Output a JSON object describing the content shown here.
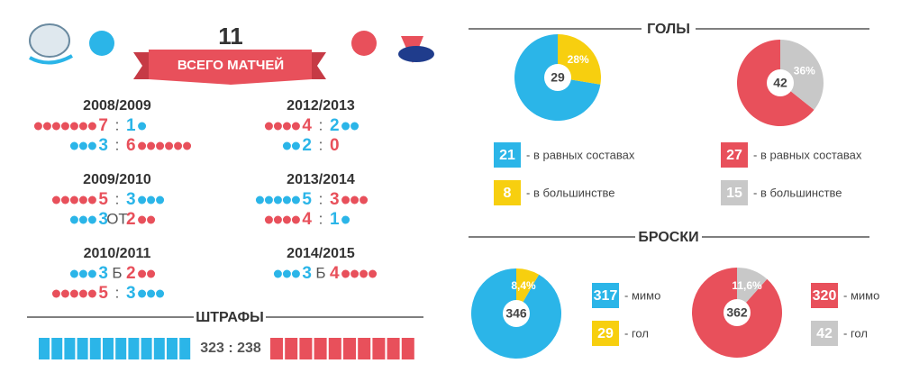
{
  "header": {
    "total": "11",
    "subtitle": "ВСЕГО МАТЧЕЙ"
  },
  "colors": {
    "blue": "#2bb5e8",
    "red": "#e8505b"
  },
  "seasons": [
    {
      "season": "2008/2009",
      "games": [
        {
          "left": 7,
          "left_team": "red",
          "sep": ":",
          "right": 1,
          "right_team": "blue"
        },
        {
          "left": 3,
          "left_team": "blue",
          "sep": ":",
          "right": 6,
          "right_team": "red"
        }
      ]
    },
    {
      "season": "2009/2010",
      "games": [
        {
          "left": 5,
          "left_team": "red",
          "sep": ":",
          "right": 3,
          "right_team": "blue"
        },
        {
          "left": 3,
          "left_team": "blue",
          "sep": "ОТ",
          "right": 2,
          "right_team": "red"
        }
      ]
    },
    {
      "season": "2010/2011",
      "games": [
        {
          "left": 3,
          "left_team": "blue",
          "sep": "Б",
          "right": 2,
          "right_team": "red"
        },
        {
          "left": 5,
          "left_team": "red",
          "sep": ":",
          "right": 3,
          "right_team": "blue"
        }
      ]
    },
    {
      "season": "2012/2013",
      "games": [
        {
          "left": 4,
          "left_team": "red",
          "sep": ":",
          "right": 2,
          "right_team": "blue"
        },
        {
          "left": 2,
          "left_team": "blue",
          "sep": ":",
          "right": 0,
          "right_team": "red"
        }
      ]
    },
    {
      "season": "2013/2014",
      "games": [
        {
          "left": 5,
          "left_team": "blue",
          "sep": ":",
          "right": 3,
          "right_team": "red"
        },
        {
          "left": 4,
          "left_team": "red",
          "sep": ":",
          "right": 1,
          "right_team": "blue"
        }
      ]
    },
    {
      "season": "2014/2015",
      "games": [
        {
          "left": 3,
          "left_team": "blue",
          "sep": "Б",
          "right": 4,
          "right_team": "red"
        }
      ]
    }
  ],
  "penalties": {
    "title": "ШТРАФЫ",
    "score": "323 : 238"
  },
  "goals": {
    "title": "ГОЛЫ",
    "pies": [
      {
        "total": 29,
        "percent": "28%",
        "segments": [
          {
            "value": 21,
            "label": "- в равных составах",
            "color": "#2bb5e8"
          },
          {
            "value": 8,
            "label": "- в большинстве",
            "color": "#f7cf0f"
          }
        ]
      },
      {
        "total": 42,
        "percent": "36%",
        "segments": [
          {
            "value": 27,
            "label": "- в равных составах",
            "color": "#e8505b"
          },
          {
            "value": 15,
            "label": "- в большинстве",
            "color": "#c8c8c8"
          }
        ]
      }
    ]
  },
  "shots": {
    "title": "БРОСКИ",
    "pies": [
      {
        "total": 346,
        "percent": "8,4%",
        "segments": [
          {
            "value": 317,
            "label": "- мимо",
            "color": "#2bb5e8"
          },
          {
            "value": 29,
            "label": "- гол",
            "color": "#f7cf0f"
          }
        ]
      },
      {
        "total": 362,
        "percent": "11,6%",
        "segments": [
          {
            "value": 320,
            "label": "- мимо",
            "color": "#e8505b"
          },
          {
            "value": 42,
            "label": "- гол",
            "color": "#c8c8c8"
          }
        ]
      }
    ]
  }
}
